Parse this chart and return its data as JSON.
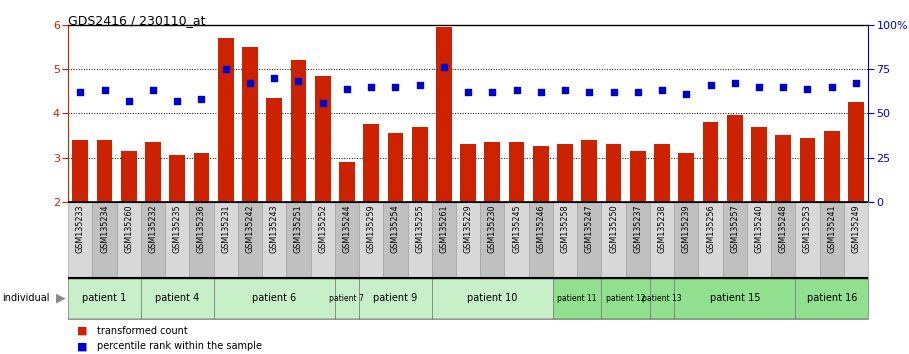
{
  "title": "GDS2416 / 230110_at",
  "samples": [
    "GSM135233",
    "GSM135234",
    "GSM135260",
    "GSM135232",
    "GSM135235",
    "GSM135236",
    "GSM135231",
    "GSM135242",
    "GSM135243",
    "GSM135251",
    "GSM135252",
    "GSM135244",
    "GSM135259",
    "GSM135254",
    "GSM135255",
    "GSM135261",
    "GSM135229",
    "GSM135230",
    "GSM135245",
    "GSM135246",
    "GSM135258",
    "GSM135247",
    "GSM135250",
    "GSM135237",
    "GSM135238",
    "GSM135239",
    "GSM135256",
    "GSM135257",
    "GSM135240",
    "GSM135248",
    "GSM135253",
    "GSM135241",
    "GSM135249"
  ],
  "bar_values": [
    3.4,
    3.4,
    3.15,
    3.35,
    3.05,
    3.1,
    5.7,
    5.5,
    4.35,
    5.2,
    4.85,
    2.9,
    3.75,
    3.55,
    3.7,
    5.95,
    3.3,
    3.35,
    3.35,
    3.25,
    3.3,
    3.4,
    3.3,
    3.15,
    3.3,
    3.1,
    3.8,
    3.95,
    3.7,
    3.5,
    3.45,
    3.6,
    4.25
  ],
  "dot_values_pct": [
    62,
    63,
    57,
    63,
    57,
    58,
    75,
    67,
    70,
    68,
    56,
    64,
    65,
    65,
    66,
    76,
    62,
    62,
    63,
    62,
    63,
    62,
    62,
    62,
    63,
    61,
    66,
    67,
    65,
    65,
    64,
    65,
    67
  ],
  "patients": [
    {
      "label": "patient 1",
      "start": 0,
      "end": 2,
      "color": "#c8f0c8"
    },
    {
      "label": "patient 4",
      "start": 3,
      "end": 5,
      "color": "#c8f0c8"
    },
    {
      "label": "patient 6",
      "start": 6,
      "end": 10,
      "color": "#c8f0c8"
    },
    {
      "label": "patient 7",
      "start": 11,
      "end": 11,
      "color": "#c8f0c8"
    },
    {
      "label": "patient 9",
      "start": 12,
      "end": 14,
      "color": "#c8f0c8"
    },
    {
      "label": "patient 10",
      "start": 15,
      "end": 19,
      "color": "#c8f0c8"
    },
    {
      "label": "patient 11",
      "start": 20,
      "end": 21,
      "color": "#90e090"
    },
    {
      "label": "patient 12",
      "start": 22,
      "end": 23,
      "color": "#90e090"
    },
    {
      "label": "patient 13",
      "start": 24,
      "end": 24,
      "color": "#90e090"
    },
    {
      "label": "patient 15",
      "start": 25,
      "end": 29,
      "color": "#90e090"
    },
    {
      "label": "patient 16",
      "start": 30,
      "end": 32,
      "color": "#90e090"
    }
  ],
  "ylim": [
    2,
    6
  ],
  "yticks_left": [
    2,
    3,
    4,
    5,
    6
  ],
  "yticks_right": [
    0,
    25,
    50,
    75,
    100
  ],
  "ytick_labels_right": [
    "0",
    "25",
    "50",
    "75",
    "100%"
  ],
  "bar_color": "#cc2200",
  "dot_color": "#0000cc",
  "sample_bg_even": "#d8d8d8",
  "sample_bg_odd": "#c0c0c0"
}
